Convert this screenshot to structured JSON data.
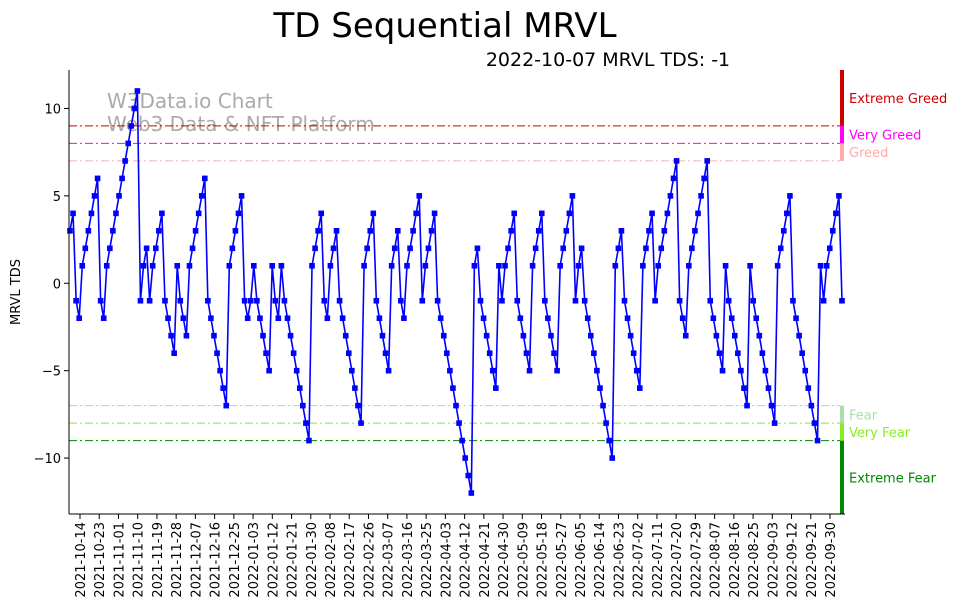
{
  "chart_data": {
    "type": "line",
    "title": "TD Sequential MRVL",
    "subtitle": "2022-10-07 MRVL TDS: -1",
    "ylabel": "MRVL TDS",
    "xlabel": "",
    "ylim": [
      -13.2,
      12.2
    ],
    "yticks": [
      -10,
      -5,
      0,
      5,
      10
    ],
    "watermark": [
      "W3Data.io Chart",
      "Web3 Data & NFT Platform"
    ],
    "x_tick_labels": [
      "2021-10-14",
      "2021-10-23",
      "2021-11-01",
      "2021-11-10",
      "2021-11-19",
      "2021-11-28",
      "2021-12-07",
      "2021-12-16",
      "2021-12-25",
      "2022-01-03",
      "2022-01-12",
      "2022-01-21",
      "2022-01-30",
      "2022-02-08",
      "2022-02-17",
      "2022-02-26",
      "2022-03-07",
      "2022-03-16",
      "2022-03-25",
      "2022-04-03",
      "2022-04-12",
      "2022-04-21",
      "2022-04-30",
      "2022-05-09",
      "2022-05-18",
      "2022-05-27",
      "2022-06-05",
      "2022-06-14",
      "2022-06-23",
      "2022-07-02",
      "2022-07-11",
      "2022-07-20",
      "2022-07-29",
      "2022-08-07",
      "2022-08-16",
      "2022-08-25",
      "2022-09-03",
      "2022-09-12",
      "2022-09-21",
      "2022-09-30"
    ],
    "series": [
      {
        "name": "MRVL TDS",
        "color": "#0000ff",
        "values": [
          3,
          4,
          -1,
          -2,
          1,
          2,
          3,
          4,
          5,
          6,
          -1,
          -2,
          1,
          2,
          3,
          4,
          5,
          6,
          7,
          8,
          9,
          10,
          11,
          -1,
          1,
          2,
          -1,
          1,
          2,
          3,
          4,
          -1,
          -2,
          -3,
          -4,
          1,
          -1,
          -2,
          -3,
          1,
          2,
          3,
          4,
          5,
          6,
          -1,
          -2,
          -3,
          -4,
          -5,
          -6,
          -7,
          1,
          2,
          3,
          4,
          5,
          -1,
          -2,
          -1,
          1,
          -1,
          -2,
          -3,
          -4,
          -5,
          1,
          -1,
          -2,
          1,
          -1,
          -2,
          -3,
          -4,
          -5,
          -6,
          -7,
          -8,
          -9,
          1,
          2,
          3,
          4,
          -1,
          -2,
          1,
          2,
          3,
          -1,
          -2,
          -3,
          -4,
          -5,
          -6,
          -7,
          -8,
          1,
          2,
          3,
          4,
          -1,
          -2,
          -3,
          -4,
          -5,
          1,
          2,
          3,
          -1,
          -2,
          1,
          2,
          3,
          4,
          5,
          -1,
          1,
          2,
          3,
          4,
          -1,
          -2,
          -3,
          -4,
          -5,
          -6,
          -7,
          -8,
          -9,
          -10,
          -11,
          -12,
          1,
          2,
          -1,
          -2,
          -3,
          -4,
          -5,
          -6,
          1,
          -1,
          1,
          2,
          3,
          4,
          -1,
          -2,
          -3,
          -4,
          -5,
          1,
          2,
          3,
          4,
          -1,
          -2,
          -3,
          -4,
          -5,
          1,
          2,
          3,
          4,
          5,
          -1,
          1,
          2,
          -1,
          -2,
          -3,
          -4,
          -5,
          -6,
          -7,
          -8,
          -9,
          -10,
          1,
          2,
          3,
          -1,
          -2,
          -3,
          -4,
          -5,
          -6,
          1,
          2,
          3,
          4,
          -1,
          1,
          2,
          3,
          4,
          5,
          6,
          7,
          -1,
          -2,
          -3,
          1,
          2,
          3,
          4,
          5,
          6,
          7,
          -1,
          -2,
          -3,
          -4,
          -5,
          1,
          -1,
          -2,
          -3,
          -4,
          -5,
          -6,
          -7,
          1,
          -1,
          -2,
          -3,
          -4,
          -5,
          -6,
          -7,
          -8,
          1,
          2,
          3,
          4,
          5,
          -1,
          -2,
          -3,
          -4,
          -5,
          -6,
          -7,
          -8,
          -9,
          1,
          -1,
          1,
          2,
          3,
          4,
          5,
          -1
        ]
      }
    ],
    "levels": [
      {
        "name": "Extreme Greed",
        "value": 9,
        "color": "#cc0000",
        "from": 9,
        "to": 12.2
      },
      {
        "name": "Very Greed",
        "value": 8,
        "color": "#ff00ff",
        "from": 8,
        "to": 9
      },
      {
        "name": "Greed",
        "value": 7,
        "color": "#ffaaaa",
        "from": 7,
        "to": 8
      },
      {
        "name": "Fear",
        "value": -7,
        "color": "#aaddaa",
        "from": -8,
        "to": -7
      },
      {
        "name": "Very Fear",
        "value": -8,
        "color": "#88ee22",
        "from": -9,
        "to": -8
      },
      {
        "name": "Extreme Fear",
        "value": -9,
        "color": "#008800",
        "from": -13.2,
        "to": -9
      }
    ],
    "grid": false,
    "legend": "right-side level labels"
  }
}
